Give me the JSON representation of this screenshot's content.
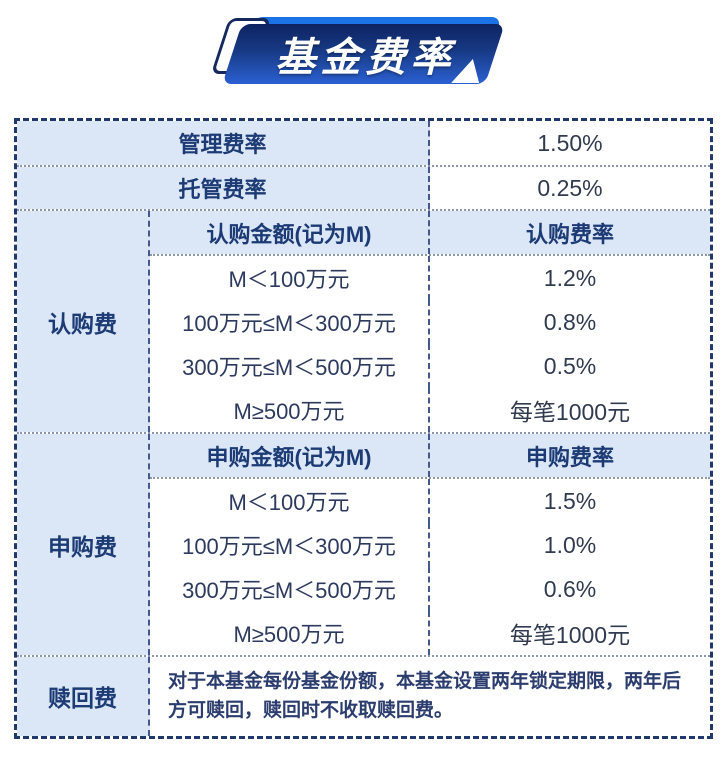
{
  "banner": {
    "title": "基金费率"
  },
  "colors": {
    "banner_bright": "#1a72e4",
    "banner_grad_top": "#0e2361",
    "banner_grad_mid": "#173a85",
    "banner_grad_bottom": "#2b60d2",
    "cell_blue": "#dbe7f7",
    "text_navy": "#1c3a74",
    "text_dark": "#313b50",
    "text_body": "#2c3a5e",
    "border_dark": "#20386b",
    "line_vertical": "#44598a",
    "line_horizontal": "#8b97ab"
  },
  "table": {
    "simple_rows": [
      {
        "label": "管理费率",
        "value": "1.50%"
      },
      {
        "label": "托管费率",
        "value": "0.25%"
      }
    ],
    "sections": [
      {
        "label": "认购费",
        "header": {
          "amount": "认购金额(记为M)",
          "rate": "认购费率"
        },
        "rows": [
          {
            "amount": "M＜100万元",
            "rate": "1.2%"
          },
          {
            "amount": "100万元≤M＜300万元",
            "rate": "0.8%"
          },
          {
            "amount": "300万元≤M＜500万元",
            "rate": "0.5%"
          },
          {
            "amount": "M≥500万元",
            "rate": "每笔1000元"
          }
        ]
      },
      {
        "label": "申购费",
        "header": {
          "amount": "申购金额(记为M)",
          "rate": "申购费率"
        },
        "rows": [
          {
            "amount": "M＜100万元",
            "rate": "1.5%"
          },
          {
            "amount": "100万元≤M＜300万元",
            "rate": "1.0%"
          },
          {
            "amount": "300万元≤M＜500万元",
            "rate": "0.6%"
          },
          {
            "amount": "M≥500万元",
            "rate": "每笔1000元"
          }
        ]
      }
    ],
    "redemption": {
      "label": "赎回费",
      "text": "对于本基金每份基金份额，本基金设置两年锁定期限，两年后方可赎回，赎回时不收取赎回费。"
    }
  }
}
